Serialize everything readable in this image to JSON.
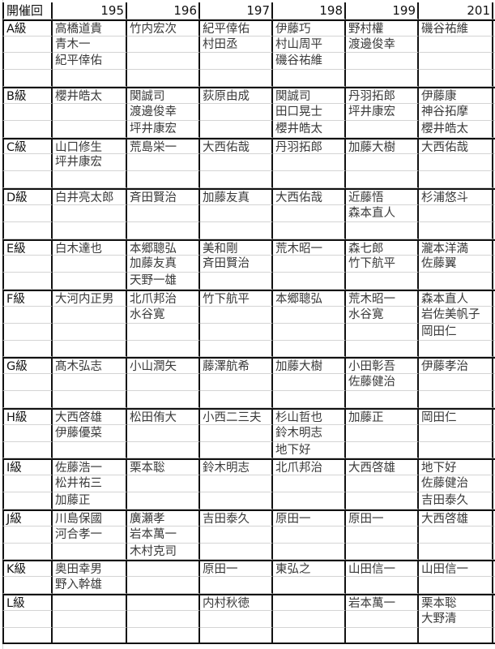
{
  "header": {
    "label": "開催回",
    "sessions": [
      "195",
      "196",
      "197",
      "198",
      "199",
      "201"
    ]
  },
  "groups": [
    {
      "label": "A級",
      "cols": [
        [
          "高橋道貴",
          "青木一",
          "紀平倖佑"
        ],
        [
          "竹内宏次"
        ],
        [
          "紀平倖佑",
          "村田丞"
        ],
        [
          "伊藤巧",
          "村山周平",
          "磯谷祐維"
        ],
        [
          "野村權",
          "渡邊俊幸"
        ],
        [
          "磯谷祐維"
        ]
      ]
    },
    {
      "label": "B級",
      "cols": [
        [
          "櫻井皓太"
        ],
        [
          "関誠司",
          "渡邊俊幸",
          "坪井康宏"
        ],
        [
          "荻原由成"
        ],
        [
          "関誠司",
          "田口晃士",
          "櫻井皓太"
        ],
        [
          "丹羽拓郎",
          "坪井康宏"
        ],
        [
          "伊藤康",
          "神谷拓摩",
          "櫻井皓太"
        ]
      ]
    },
    {
      "label": "C級",
      "cols": [
        [
          "山口修生",
          "坪井康宏"
        ],
        [
          "荒島栄一"
        ],
        [
          "大西佑哉"
        ],
        [
          "丹羽拓郎"
        ],
        [
          "加藤大樹"
        ],
        [
          "大西佑哉"
        ]
      ]
    },
    {
      "label": "D級",
      "cols": [
        [
          "白井亮太郎"
        ],
        [
          "斉田賢治"
        ],
        [
          "加藤友真"
        ],
        [
          "大西佑哉"
        ],
        [
          "近藤悟",
          "森本直人"
        ],
        [
          "杉浦悠斗"
        ]
      ]
    },
    {
      "label": "E級",
      "cols": [
        [
          "白木達也"
        ],
        [
          "本郷聰弘",
          "加藤友真",
          "天野一雄"
        ],
        [
          "美和剛",
          "斉田賢治"
        ],
        [
          "荒木昭一"
        ],
        [
          "森七郎",
          "竹下航平"
        ],
        [
          "瀧本洋満",
          "佐藤翼"
        ]
      ]
    },
    {
      "label": "F級",
      "cols": [
        [
          "大河内正男"
        ],
        [
          "北爪邦治",
          "水谷寛"
        ],
        [
          "竹下航平"
        ],
        [
          "本郷聰弘"
        ],
        [
          "荒木昭一",
          "水谷寛"
        ],
        [
          "森本直人",
          "岩佐美帆子",
          "岡田仁"
        ]
      ]
    },
    {
      "label": "G級",
      "cols": [
        [
          "髙木弘志"
        ],
        [
          "小山潤矢"
        ],
        [
          "藤澤航希"
        ],
        [
          "加藤大樹"
        ],
        [
          "小田彰吾",
          "佐藤健治"
        ],
        [
          "伊藤孝治"
        ]
      ]
    },
    {
      "label": "H級",
      "cols": [
        [
          "大西啓雄",
          "伊藤優菜"
        ],
        [
          "松田侑大"
        ],
        [
          "小西二三夫"
        ],
        [
          "杉山哲也",
          "鈴木明志",
          "地下好"
        ],
        [
          "加藤正"
        ],
        [
          "岡田仁"
        ]
      ]
    },
    {
      "label": "I級",
      "cols": [
        [
          "佐藤浩一",
          "松井祐三",
          "加藤正"
        ],
        [
          "栗本聡"
        ],
        [
          "鈴木明志"
        ],
        [
          "北爪邦治"
        ],
        [
          "大西啓雄"
        ],
        [
          "地下好",
          "佐藤健治",
          "吉田泰久"
        ]
      ]
    },
    {
      "label": "J級",
      "cols": [
        [
          "川島保國",
          "河合孝一"
        ],
        [
          "廣瀬孝",
          "岩本萬一",
          "木村克司"
        ],
        [
          "吉田泰久"
        ],
        [
          "原田一"
        ],
        [
          "原田一"
        ],
        [
          "大西啓雄"
        ]
      ]
    },
    {
      "label": "K級",
      "cols": [
        [
          "奥田幸男",
          "野入幹雄"
        ],
        [],
        [
          "原田一"
        ],
        [
          "東弘之"
        ],
        [
          "山田信一"
        ],
        [
          "山田信一"
        ]
      ]
    },
    {
      "label": "L級",
      "cols": [
        [],
        [],
        [
          "内村秋徳"
        ],
        [],
        [
          "岩本萬一"
        ],
        [
          "栗本聡",
          "大野清"
        ]
      ]
    }
  ]
}
